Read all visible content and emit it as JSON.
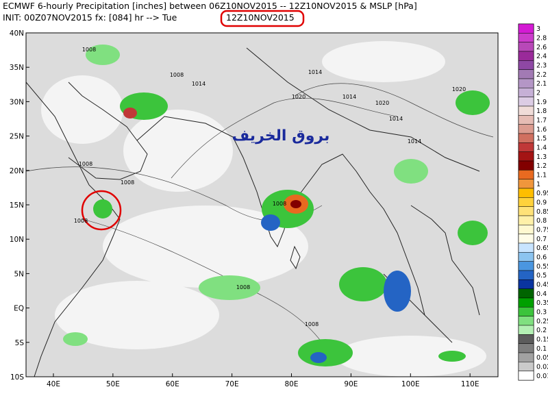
{
  "header": {
    "line1": "ECMWF 6-hourly Precipitation [inches] between 06Z10NOV2015 -- 12Z10NOV2015 & MSLP [hPa]",
    "line2_prefix": "INIT: 00Z07NOV2015 fx: [084] hr --> Tue",
    "line2_valid": "12Z10NOV2015"
  },
  "map": {
    "lon_range": [
      35.4,
      114.7
    ],
    "lat_range": [
      -10,
      40
    ],
    "lat_ticks": [
      {
        "value": 40,
        "label": "40N"
      },
      {
        "value": 35,
        "label": "35N"
      },
      {
        "value": 30,
        "label": "30N"
      },
      {
        "value": 25,
        "label": "25N"
      },
      {
        "value": 20,
        "label": "20N"
      },
      {
        "value": 15,
        "label": "15N"
      },
      {
        "value": 10,
        "label": "10N"
      },
      {
        "value": 5,
        "label": "5N"
      },
      {
        "value": 0,
        "label": "EQ"
      },
      {
        "value": -5,
        "label": "5S"
      },
      {
        "value": -10,
        "label": "10S"
      }
    ],
    "lon_ticks": [
      {
        "value": 40,
        "label": "40E"
      },
      {
        "value": 50,
        "label": "50E"
      },
      {
        "value": 60,
        "label": "60E"
      },
      {
        "value": 70,
        "label": "70E"
      },
      {
        "value": 80,
        "label": "80E"
      },
      {
        "value": 90,
        "label": "90E"
      },
      {
        "value": 100,
        "label": "100E"
      },
      {
        "value": 110,
        "label": "110E"
      }
    ],
    "contour_labels": [
      "1008",
      "1008",
      "1014",
      "1014",
      "1020",
      "1014",
      "1020",
      "1014",
      "1014",
      "1020",
      "1008",
      "1008",
      "1008",
      "1008",
      "1008",
      "1008"
    ],
    "watermark": "بروق الخريف"
  },
  "colorbar": {
    "levels": [
      {
        "label": "3",
        "color": "#d41ad4"
      },
      {
        "label": "2.8",
        "color": "#cc3ccc"
      },
      {
        "label": "2.6",
        "color": "#b848b8"
      },
      {
        "label": "2.4",
        "color": "#9a2a9a"
      },
      {
        "label": "2.3",
        "color": "#8e48a4"
      },
      {
        "label": "2.2",
        "color": "#a27ab4"
      },
      {
        "label": "2.1",
        "color": "#b496c6"
      },
      {
        "label": "2",
        "color": "#c6b0d6"
      },
      {
        "label": "1.9",
        "color": "#dccce4"
      },
      {
        "label": "1.8",
        "color": "#f0dcd8"
      },
      {
        "label": "1.7",
        "color": "#e6bcb4"
      },
      {
        "label": "1.6",
        "color": "#dc9c90"
      },
      {
        "label": "1.5",
        "color": "#d07060"
      },
      {
        "label": "1.4",
        "color": "#c03838"
      },
      {
        "label": "1.3",
        "color": "#a41414"
      },
      {
        "label": "1.2",
        "color": "#820000"
      },
      {
        "label": "1.1",
        "color": "#e86a20"
      },
      {
        "label": "1",
        "color": "#f0963c"
      },
      {
        "label": "0.95",
        "color": "#ffbe00"
      },
      {
        "label": "0.9",
        "color": "#ffd23c"
      },
      {
        "label": "0.85",
        "color": "#ffe278"
      },
      {
        "label": "0.8",
        "color": "#fff0a8"
      },
      {
        "label": "0.75",
        "color": "#fff8d0"
      },
      {
        "label": "0.7",
        "color": "#fffce8"
      },
      {
        "label": "0.65",
        "color": "#c8e4ff"
      },
      {
        "label": "0.6",
        "color": "#8cc4f0"
      },
      {
        "label": "0.55",
        "color": "#4a96e0"
      },
      {
        "label": "0.5",
        "color": "#2464c4"
      },
      {
        "label": "0.45",
        "color": "#0a34a0"
      },
      {
        "label": "0.4",
        "color": "#006400"
      },
      {
        "label": "0.35",
        "color": "#00a000"
      },
      {
        "label": "0.3",
        "color": "#3cc43c"
      },
      {
        "label": "0.25",
        "color": "#80e080"
      },
      {
        "label": "0.2",
        "color": "#b4f0b4"
      },
      {
        "label": "0.15",
        "color": "#5c5c5c"
      },
      {
        "label": "0.1",
        "color": "#7e7e7e"
      },
      {
        "label": "0.05",
        "color": "#a2a2a2"
      },
      {
        "label": "0.02",
        "color": "#cacaca"
      },
      {
        "label": "0.01",
        "color": "#ffffff"
      }
    ]
  }
}
